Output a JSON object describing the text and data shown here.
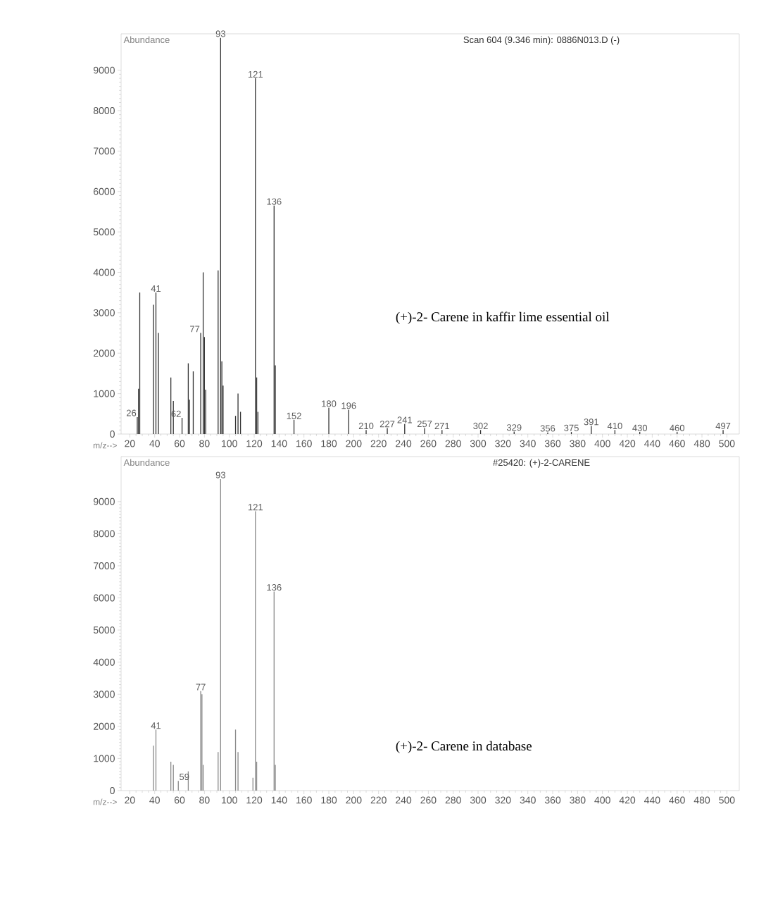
{
  "chart_data": [
    {
      "type": "bar",
      "title": "Scan 604 (9.346 min): 0886N013.D (-)",
      "xlabel": "m/z-->",
      "ylabel": "Abundance",
      "x": [
        26,
        27,
        28,
        39,
        41,
        43,
        53,
        55,
        62,
        67,
        68,
        71,
        77,
        79,
        80,
        81,
        91,
        93,
        94,
        95,
        105,
        107,
        109,
        121,
        122,
        123,
        136,
        137,
        152,
        180,
        196,
        210,
        227,
        241,
        257,
        271,
        302,
        329,
        356,
        375,
        391,
        410,
        430,
        460,
        497
      ],
      "values": [
        420,
        1120,
        3500,
        3200,
        3500,
        2500,
        1400,
        820,
        400,
        1750,
        850,
        1550,
        2500,
        4000,
        2400,
        1100,
        4050,
        9800,
        1800,
        1200,
        450,
        1000,
        550,
        8800,
        1400,
        550,
        5650,
        1700,
        350,
        650,
        600,
        100,
        150,
        250,
        150,
        100,
        100,
        60,
        40,
        50,
        200,
        100,
        50,
        50,
        100
      ],
      "color": "#333333",
      "xlim": [
        13,
        510
      ],
      "ylim": [
        0,
        9900
      ],
      "xticks": [
        20,
        40,
        60,
        80,
        100,
        120,
        140,
        160,
        180,
        200,
        220,
        240,
        260,
        280,
        300,
        320,
        340,
        360,
        380,
        400,
        420,
        440,
        460,
        480,
        500
      ],
      "yticks": [
        0,
        1000,
        2000,
        3000,
        4000,
        5000,
        6000,
        7000,
        8000,
        9000
      ],
      "annotations": [
        {
          "text": "26",
          "x": 26,
          "y": 420
        },
        {
          "text": "41",
          "x": 41,
          "y": 3500
        },
        {
          "text": "62",
          "x": 62,
          "y": 400
        },
        {
          "text": "77",
          "x": 77,
          "y": 2500
        },
        {
          "text": "93",
          "x": 93,
          "y": 9800
        },
        {
          "text": "121",
          "x": 121,
          "y": 8800
        },
        {
          "text": "136",
          "x": 136,
          "y": 5650
        },
        {
          "text": "152",
          "x": 152,
          "y": 350
        },
        {
          "text": "180",
          "x": 180,
          "y": 650
        },
        {
          "text": "196",
          "x": 196,
          "y": 600
        },
        {
          "text": "210",
          "x": 210,
          "y": 100
        },
        {
          "text": "227",
          "x": 227,
          "y": 150
        },
        {
          "text": "241",
          "x": 241,
          "y": 250
        },
        {
          "text": "257",
          "x": 257,
          "y": 150
        },
        {
          "text": "271",
          "x": 271,
          "y": 100
        },
        {
          "text": "302",
          "x": 302,
          "y": 100
        },
        {
          "text": "329",
          "x": 329,
          "y": 60
        },
        {
          "text": "356",
          "x": 356,
          "y": 40
        },
        {
          "text": "375",
          "x": 375,
          "y": 50
        },
        {
          "text": "391",
          "x": 391,
          "y": 200
        },
        {
          "text": "410",
          "x": 410,
          "y": 100
        },
        {
          "text": "430",
          "x": 430,
          "y": 50
        },
        {
          "text": "460",
          "x": 460,
          "y": 50
        },
        {
          "text": "497",
          "x": 497,
          "y": 100
        },
        "(+)-2- Carene in kaffir lime essential oil"
      ]
    },
    {
      "type": "bar",
      "title": "#25420: (+)-2-CARENE",
      "xlabel": "m/z-->",
      "ylabel": "Abundance",
      "x": [
        39,
        41,
        53,
        55,
        59,
        67,
        77,
        78,
        79,
        91,
        93,
        105,
        107,
        119,
        121,
        122,
        136,
        137
      ],
      "values": [
        1400,
        1900,
        900,
        800,
        300,
        600,
        3100,
        3000,
        800,
        1200,
        9700,
        1900,
        1200,
        400,
        8700,
        900,
        6200,
        800
      ],
      "color": "#8a8a8a",
      "xlim": [
        13,
        510
      ],
      "ylim": [
        0,
        10400
      ],
      "xticks": [
        20,
        40,
        60,
        80,
        100,
        120,
        140,
        160,
        180,
        200,
        220,
        240,
        260,
        280,
        300,
        320,
        340,
        360,
        380,
        400,
        420,
        440,
        460,
        480,
        500
      ],
      "yticks": [
        0,
        1000,
        2000,
        3000,
        4000,
        5000,
        6000,
        7000,
        8000,
        9000
      ],
      "annotations": [
        {
          "text": "41",
          "x": 41,
          "y": 1900
        },
        {
          "text": "59",
          "x": 59,
          "y": 300
        },
        {
          "text": "77",
          "x": 77,
          "y": 3100
        },
        {
          "text": "93",
          "x": 93,
          "y": 9700
        },
        {
          "text": "121",
          "x": 121,
          "y": 8700
        },
        {
          "text": "136",
          "x": 136,
          "y": 6200
        },
        "(+)-2- Carene in database"
      ]
    }
  ]
}
